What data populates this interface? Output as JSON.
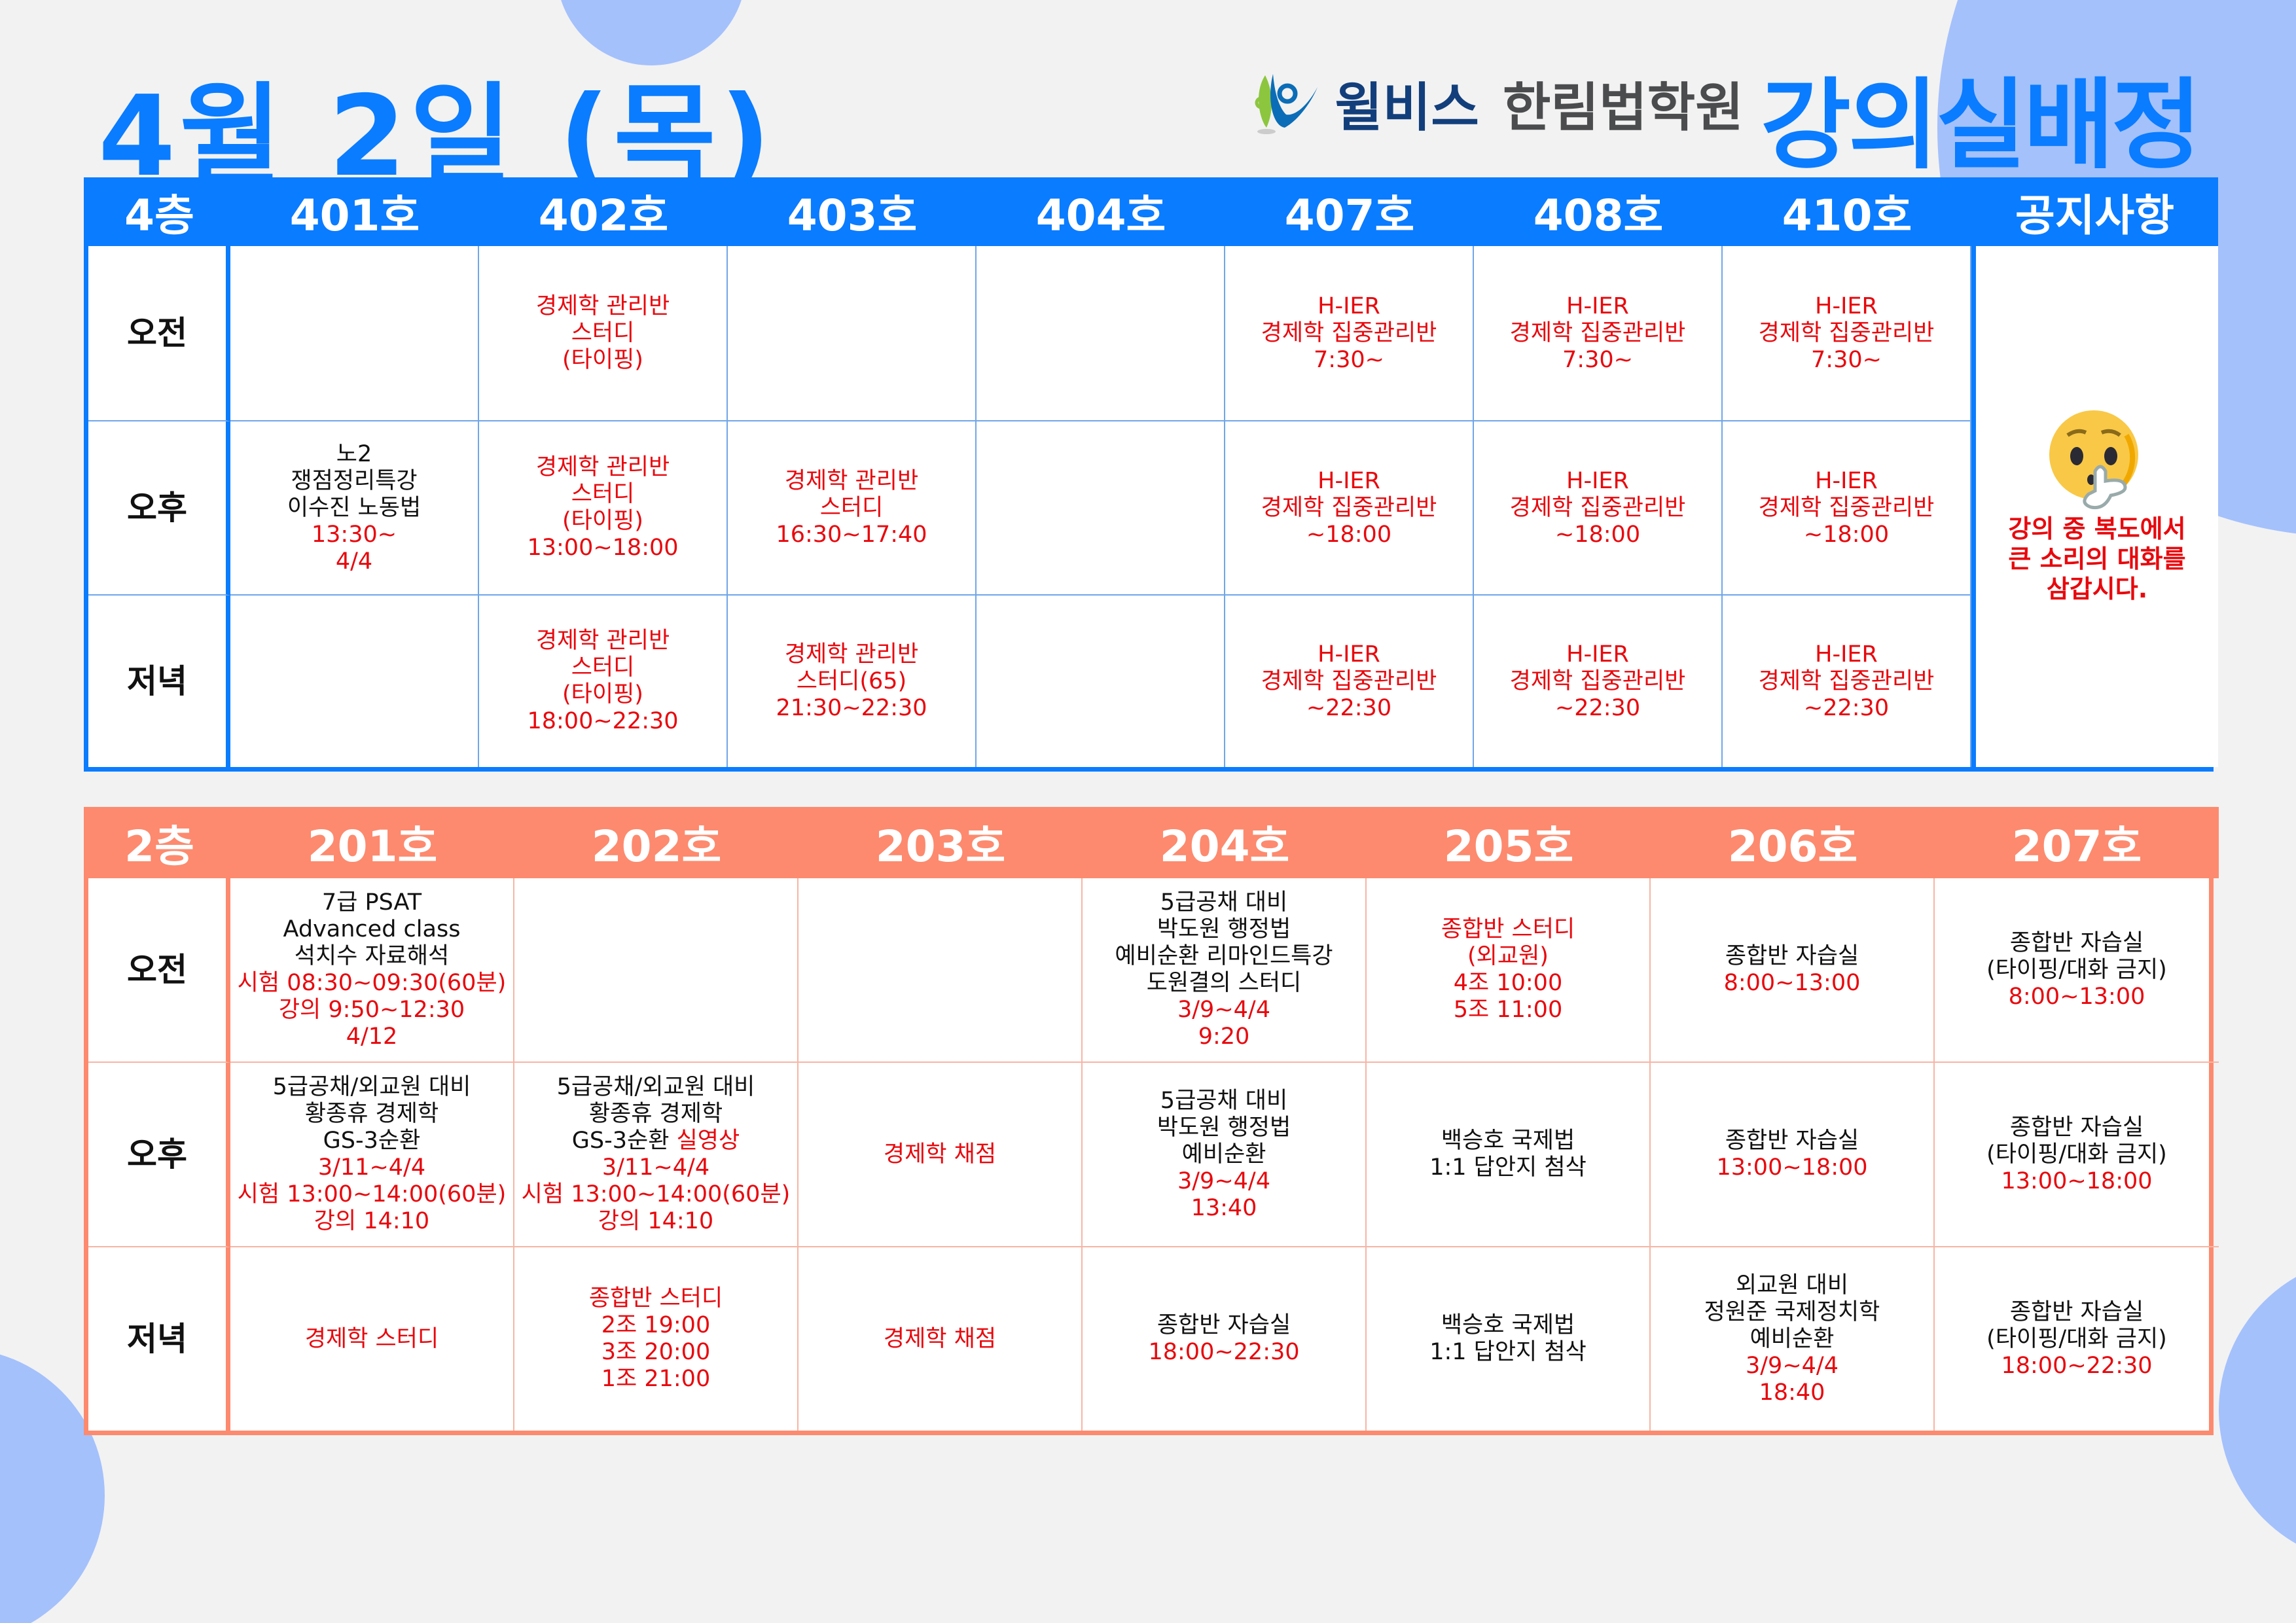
{
  "header": {
    "date_title": "4월 2일 (목)",
    "logo": {
      "brand": "윌비스",
      "academy": "한림법학원"
    },
    "heading": "강의실배정"
  },
  "colors": {
    "blue": "#0a7cff",
    "salmon": "#fd8a6e",
    "red": "#e8080d",
    "decor": "#a4c1fc"
  },
  "floor4": {
    "label": "4층",
    "rooms": [
      "401호",
      "402호",
      "403호",
      "404호",
      "407호",
      "408호",
      "410호"
    ],
    "notice_header": "공지사항",
    "notice": {
      "icon": "shushing-face-icon",
      "lines": [
        "강의 중 복도에서",
        "큰 소리의 대화를",
        "삼갑시다."
      ]
    },
    "rows": [
      {
        "label": "오전",
        "cells": [
          [],
          [
            {
              "t": "경제학 관리반",
              "red": true
            },
            {
              "t": "스터디",
              "red": true
            },
            {
              "t": "(타이핑)",
              "red": true
            }
          ],
          [],
          [],
          [
            {
              "t": "H-IER",
              "red": true
            },
            {
              "t": "경제학 집중관리반",
              "red": true
            },
            {
              "t": "7:30~",
              "red": true
            }
          ],
          [
            {
              "t": "H-IER",
              "red": true
            },
            {
              "t": "경제학 집중관리반",
              "red": true
            },
            {
              "t": "7:30~",
              "red": true
            }
          ],
          [
            {
              "t": "H-IER",
              "red": true
            },
            {
              "t": "경제학 집중관리반",
              "red": true
            },
            {
              "t": "7:30~",
              "red": true
            }
          ]
        ]
      },
      {
        "label": "오후",
        "cells": [
          [
            {
              "t": "노2"
            },
            {
              "t": "쟁점정리특강"
            },
            {
              "t": "이수진 노동법"
            },
            {
              "t": "13:30~",
              "red": true
            },
            {
              "t": "4/4",
              "red": true
            }
          ],
          [
            {
              "t": "경제학 관리반",
              "red": true
            },
            {
              "t": "스터디",
              "red": true
            },
            {
              "t": "(타이핑)",
              "red": true
            },
            {
              "t": "13:00~18:00",
              "red": true
            }
          ],
          [
            {
              "t": "경제학 관리반",
              "red": true
            },
            {
              "t": "스터디",
              "red": true
            },
            {
              "t": "16:30~17:40",
              "red": true
            }
          ],
          [],
          [
            {
              "t": "H-IER",
              "red": true
            },
            {
              "t": "경제학 집중관리반",
              "red": true
            },
            {
              "t": "~18:00",
              "red": true
            }
          ],
          [
            {
              "t": "H-IER",
              "red": true
            },
            {
              "t": "경제학 집중관리반",
              "red": true
            },
            {
              "t": "~18:00",
              "red": true
            }
          ],
          [
            {
              "t": "H-IER",
              "red": true
            },
            {
              "t": "경제학 집중관리반",
              "red": true
            },
            {
              "t": "~18:00",
              "red": true
            }
          ]
        ]
      },
      {
        "label": "저녁",
        "cells": [
          [],
          [
            {
              "t": "경제학 관리반",
              "red": true
            },
            {
              "t": "스터디",
              "red": true
            },
            {
              "t": "(타이핑)",
              "red": true
            },
            {
              "t": "18:00~22:30",
              "red": true
            }
          ],
          [
            {
              "t": "경제학 관리반",
              "red": true
            },
            {
              "t": "스터디(65)",
              "red": true
            },
            {
              "t": "21:30~22:30",
              "red": true
            }
          ],
          [],
          [
            {
              "t": "H-IER",
              "red": true
            },
            {
              "t": "경제학 집중관리반",
              "red": true
            },
            {
              "t": "~22:30",
              "red": true
            }
          ],
          [
            {
              "t": "H-IER",
              "red": true
            },
            {
              "t": "경제학 집중관리반",
              "red": true
            },
            {
              "t": "~22:30",
              "red": true
            }
          ],
          [
            {
              "t": "H-IER",
              "red": true
            },
            {
              "t": "경제학 집중관리반",
              "red": true
            },
            {
              "t": "~22:30",
              "red": true
            }
          ]
        ]
      }
    ]
  },
  "floor2": {
    "label": "2층",
    "rooms": [
      "201호",
      "202호",
      "203호",
      "204호",
      "205호",
      "206호",
      "207호"
    ],
    "rows": [
      {
        "label": "오전",
        "cells": [
          [
            {
              "t": "7급 PSAT"
            },
            {
              "t": "Advanced class"
            },
            {
              "t": "석치수 자료해석"
            },
            {
              "t": "시험 08:30~09:30(60분)",
              "red": true
            },
            {
              "t": "강의 9:50~12:30",
              "red": true
            },
            {
              "t": "4/12",
              "red": true
            }
          ],
          [],
          [],
          [
            {
              "t": "5급공채 대비"
            },
            {
              "t": "박도원 행정법"
            },
            {
              "t": "예비순환 리마인드특강"
            },
            {
              "t": "도원결의 스터디"
            },
            {
              "t": "3/9~4/4",
              "red": true
            },
            {
              "t": "9:20",
              "red": true
            }
          ],
          [
            {
              "t": "종합반 스터디",
              "red": true
            },
            {
              "t": "(외교원)",
              "red": true
            },
            {
              "t": "4조 10:00",
              "red": true
            },
            {
              "t": "5조 11:00",
              "red": true
            }
          ],
          [
            {
              "t": "종합반 자습실"
            },
            {
              "t": "8:00~13:00",
              "red": true
            }
          ],
          [
            {
              "t": "종합반 자습실"
            },
            {
              "t": "(타이핑/대화 금지)"
            },
            {
              "t": "8:00~13:00",
              "red": true
            }
          ]
        ]
      },
      {
        "label": "오후",
        "cells": [
          [
            {
              "t": "5급공채/외교원 대비"
            },
            {
              "t": "황종휴 경제학"
            },
            {
              "t": "GS-3순환"
            },
            {
              "t": "3/11~4/4",
              "red": true
            },
            {
              "t": "시험 13:00~14:00(60분)",
              "red": true
            },
            {
              "t": "강의 14:10",
              "red": true
            }
          ],
          [
            {
              "t": "5급공채/외교원 대비"
            },
            {
              "t": "황종휴 경제학"
            },
            {
              "t": "GS-3순환",
              "extra": "실영상"
            },
            {
              "t": "3/11~4/4",
              "red": true
            },
            {
              "t": "시험 13:00~14:00(60분)",
              "red": true
            },
            {
              "t": "강의 14:10",
              "red": true
            }
          ],
          [
            {
              "t": "경제학 채점",
              "red": true
            }
          ],
          [
            {
              "t": "5급공채 대비"
            },
            {
              "t": "박도원 행정법"
            },
            {
              "t": "예비순환"
            },
            {
              "t": "3/9~4/4",
              "red": true
            },
            {
              "t": "13:40",
              "red": true
            }
          ],
          [
            {
              "t": "백승호 국제법"
            },
            {
              "t": "1:1 답안지 첨삭"
            }
          ],
          [
            {
              "t": "종합반 자습실"
            },
            {
              "t": "13:00~18:00",
              "red": true
            }
          ],
          [
            {
              "t": "종합반 자습실"
            },
            {
              "t": "(타이핑/대화 금지)"
            },
            {
              "t": "13:00~18:00",
              "red": true
            }
          ]
        ]
      },
      {
        "label": "저녁",
        "cells": [
          [
            {
              "t": "경제학 스터디",
              "red": true
            }
          ],
          [
            {
              "t": "종합반 스터디",
              "red": true
            },
            {
              "t": "2조 19:00",
              "red": true
            },
            {
              "t": "3조 20:00",
              "red": true
            },
            {
              "t": "1조 21:00",
              "red": true
            }
          ],
          [
            {
              "t": "경제학 채점",
              "red": true
            }
          ],
          [
            {
              "t": "종합반 자습실"
            },
            {
              "t": "18:00~22:30",
              "red": true
            }
          ],
          [
            {
              "t": "백승호 국제법"
            },
            {
              "t": "1:1 답안지 첨삭"
            }
          ],
          [
            {
              "t": "외교원 대비"
            },
            {
              "t": "정원준 국제정치학"
            },
            {
              "t": "예비순환"
            },
            {
              "t": "3/9~4/4",
              "red": true
            },
            {
              "t": "18:40",
              "red": true
            }
          ],
          [
            {
              "t": "종합반 자습실"
            },
            {
              "t": "(타이핑/대화 금지)"
            },
            {
              "t": "18:00~22:30",
              "red": true
            }
          ]
        ]
      }
    ]
  }
}
